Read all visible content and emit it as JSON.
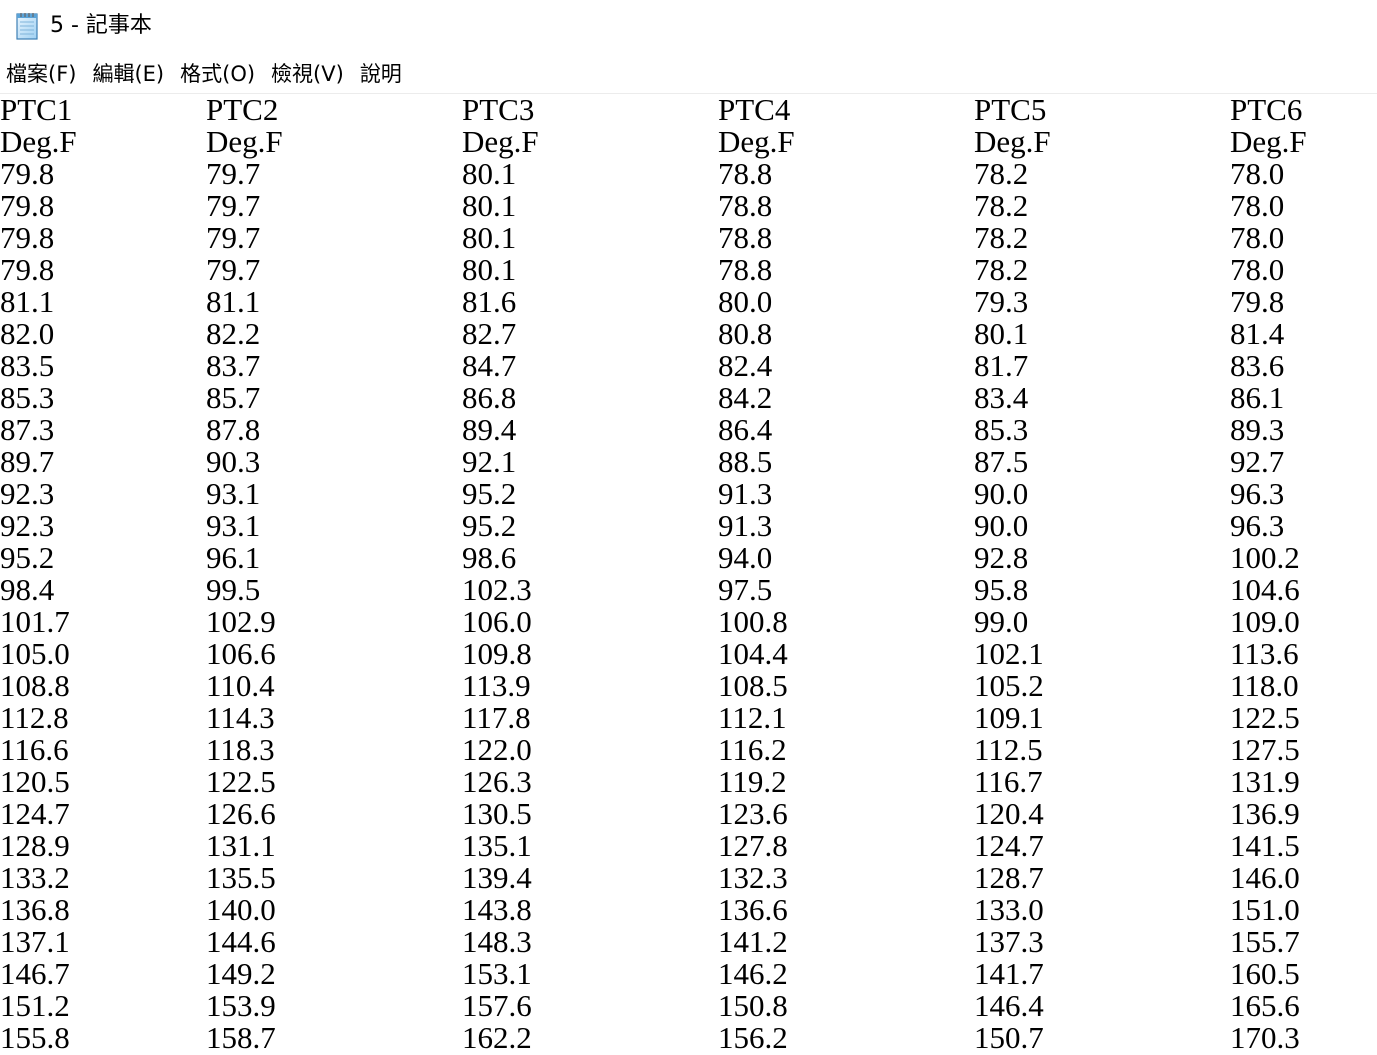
{
  "window": {
    "title": "5 - 記事本",
    "icon": "notepad-icon"
  },
  "menu": [
    {
      "label": "檔案(F)"
    },
    {
      "label": "編輯(E)"
    },
    {
      "label": "格式(O)"
    },
    {
      "label": "檢視(V)"
    },
    {
      "label": "說明"
    }
  ],
  "document": {
    "headers": [
      "PTC1",
      "PTC2",
      "PTC3",
      "PTC4",
      "PTC5",
      "PTC6"
    ],
    "units": [
      "Deg.F",
      "Deg.F",
      "Deg.F",
      "Deg.F",
      "Deg.F",
      "Deg.F"
    ],
    "rows": [
      [
        "79.8",
        "79.7",
        "80.1",
        "78.8",
        "78.2",
        "78.0"
      ],
      [
        "79.8",
        "79.7",
        "80.1",
        "78.8",
        "78.2",
        "78.0"
      ],
      [
        "79.8",
        "79.7",
        "80.1",
        "78.8",
        "78.2",
        "78.0"
      ],
      [
        "79.8",
        "79.7",
        "80.1",
        "78.8",
        "78.2",
        "78.0"
      ],
      [
        "81.1",
        "81.1",
        "81.6",
        "80.0",
        "79.3",
        "79.8"
      ],
      [
        "82.0",
        "82.2",
        "82.7",
        "80.8",
        "80.1",
        "81.4"
      ],
      [
        "83.5",
        "83.7",
        "84.7",
        "82.4",
        "81.7",
        "83.6"
      ],
      [
        "85.3",
        "85.7",
        "86.8",
        "84.2",
        "83.4",
        "86.1"
      ],
      [
        "87.3",
        "87.8",
        "89.4",
        "86.4",
        "85.3",
        "89.3"
      ],
      [
        "89.7",
        "90.3",
        "92.1",
        "88.5",
        "87.5",
        "92.7"
      ],
      [
        "92.3",
        "93.1",
        "95.2",
        "91.3",
        "90.0",
        "96.3"
      ],
      [
        "92.3",
        "93.1",
        "95.2",
        "91.3",
        "90.0",
        "96.3"
      ],
      [
        "95.2",
        "96.1",
        "98.6",
        "94.0",
        "92.8",
        "100.2"
      ],
      [
        "98.4",
        "99.5",
        "102.3",
        "97.5",
        "95.8",
        "104.6"
      ],
      [
        "101.7",
        "102.9",
        "106.0",
        "100.8",
        "99.0",
        "109.0"
      ],
      [
        "105.0",
        "106.6",
        "109.8",
        "104.4",
        "102.1",
        "113.6"
      ],
      [
        "108.8",
        "110.4",
        "113.9",
        "108.5",
        "105.2",
        "118.0"
      ],
      [
        "112.8",
        "114.3",
        "117.8",
        "112.1",
        "109.1",
        "122.5"
      ],
      [
        "116.6",
        "118.3",
        "122.0",
        "116.2",
        "112.5",
        "127.5"
      ],
      [
        "120.5",
        "122.5",
        "126.3",
        "119.2",
        "116.7",
        "131.9"
      ],
      [
        "124.7",
        "126.6",
        "130.5",
        "123.6",
        "120.4",
        "136.9"
      ],
      [
        "128.9",
        "131.1",
        "135.1",
        "127.8",
        "124.7",
        "141.5"
      ],
      [
        "133.2",
        "135.5",
        "139.4",
        "132.3",
        "128.7",
        "146.0"
      ],
      [
        "136.8",
        "140.0",
        "143.8",
        "136.6",
        "133.0",
        "151.0"
      ],
      [
        "137.1",
        "144.6",
        "148.3",
        "141.2",
        "137.3",
        "155.7"
      ],
      [
        "146.7",
        "149.2",
        "153.1",
        "146.2",
        "141.7",
        "160.5"
      ],
      [
        "151.2",
        "153.9",
        "157.6",
        "150.8",
        "146.4",
        "165.6"
      ],
      [
        "155.8",
        "158.7",
        "162.2",
        "156.2",
        "150.7",
        "170.3"
      ]
    ]
  }
}
